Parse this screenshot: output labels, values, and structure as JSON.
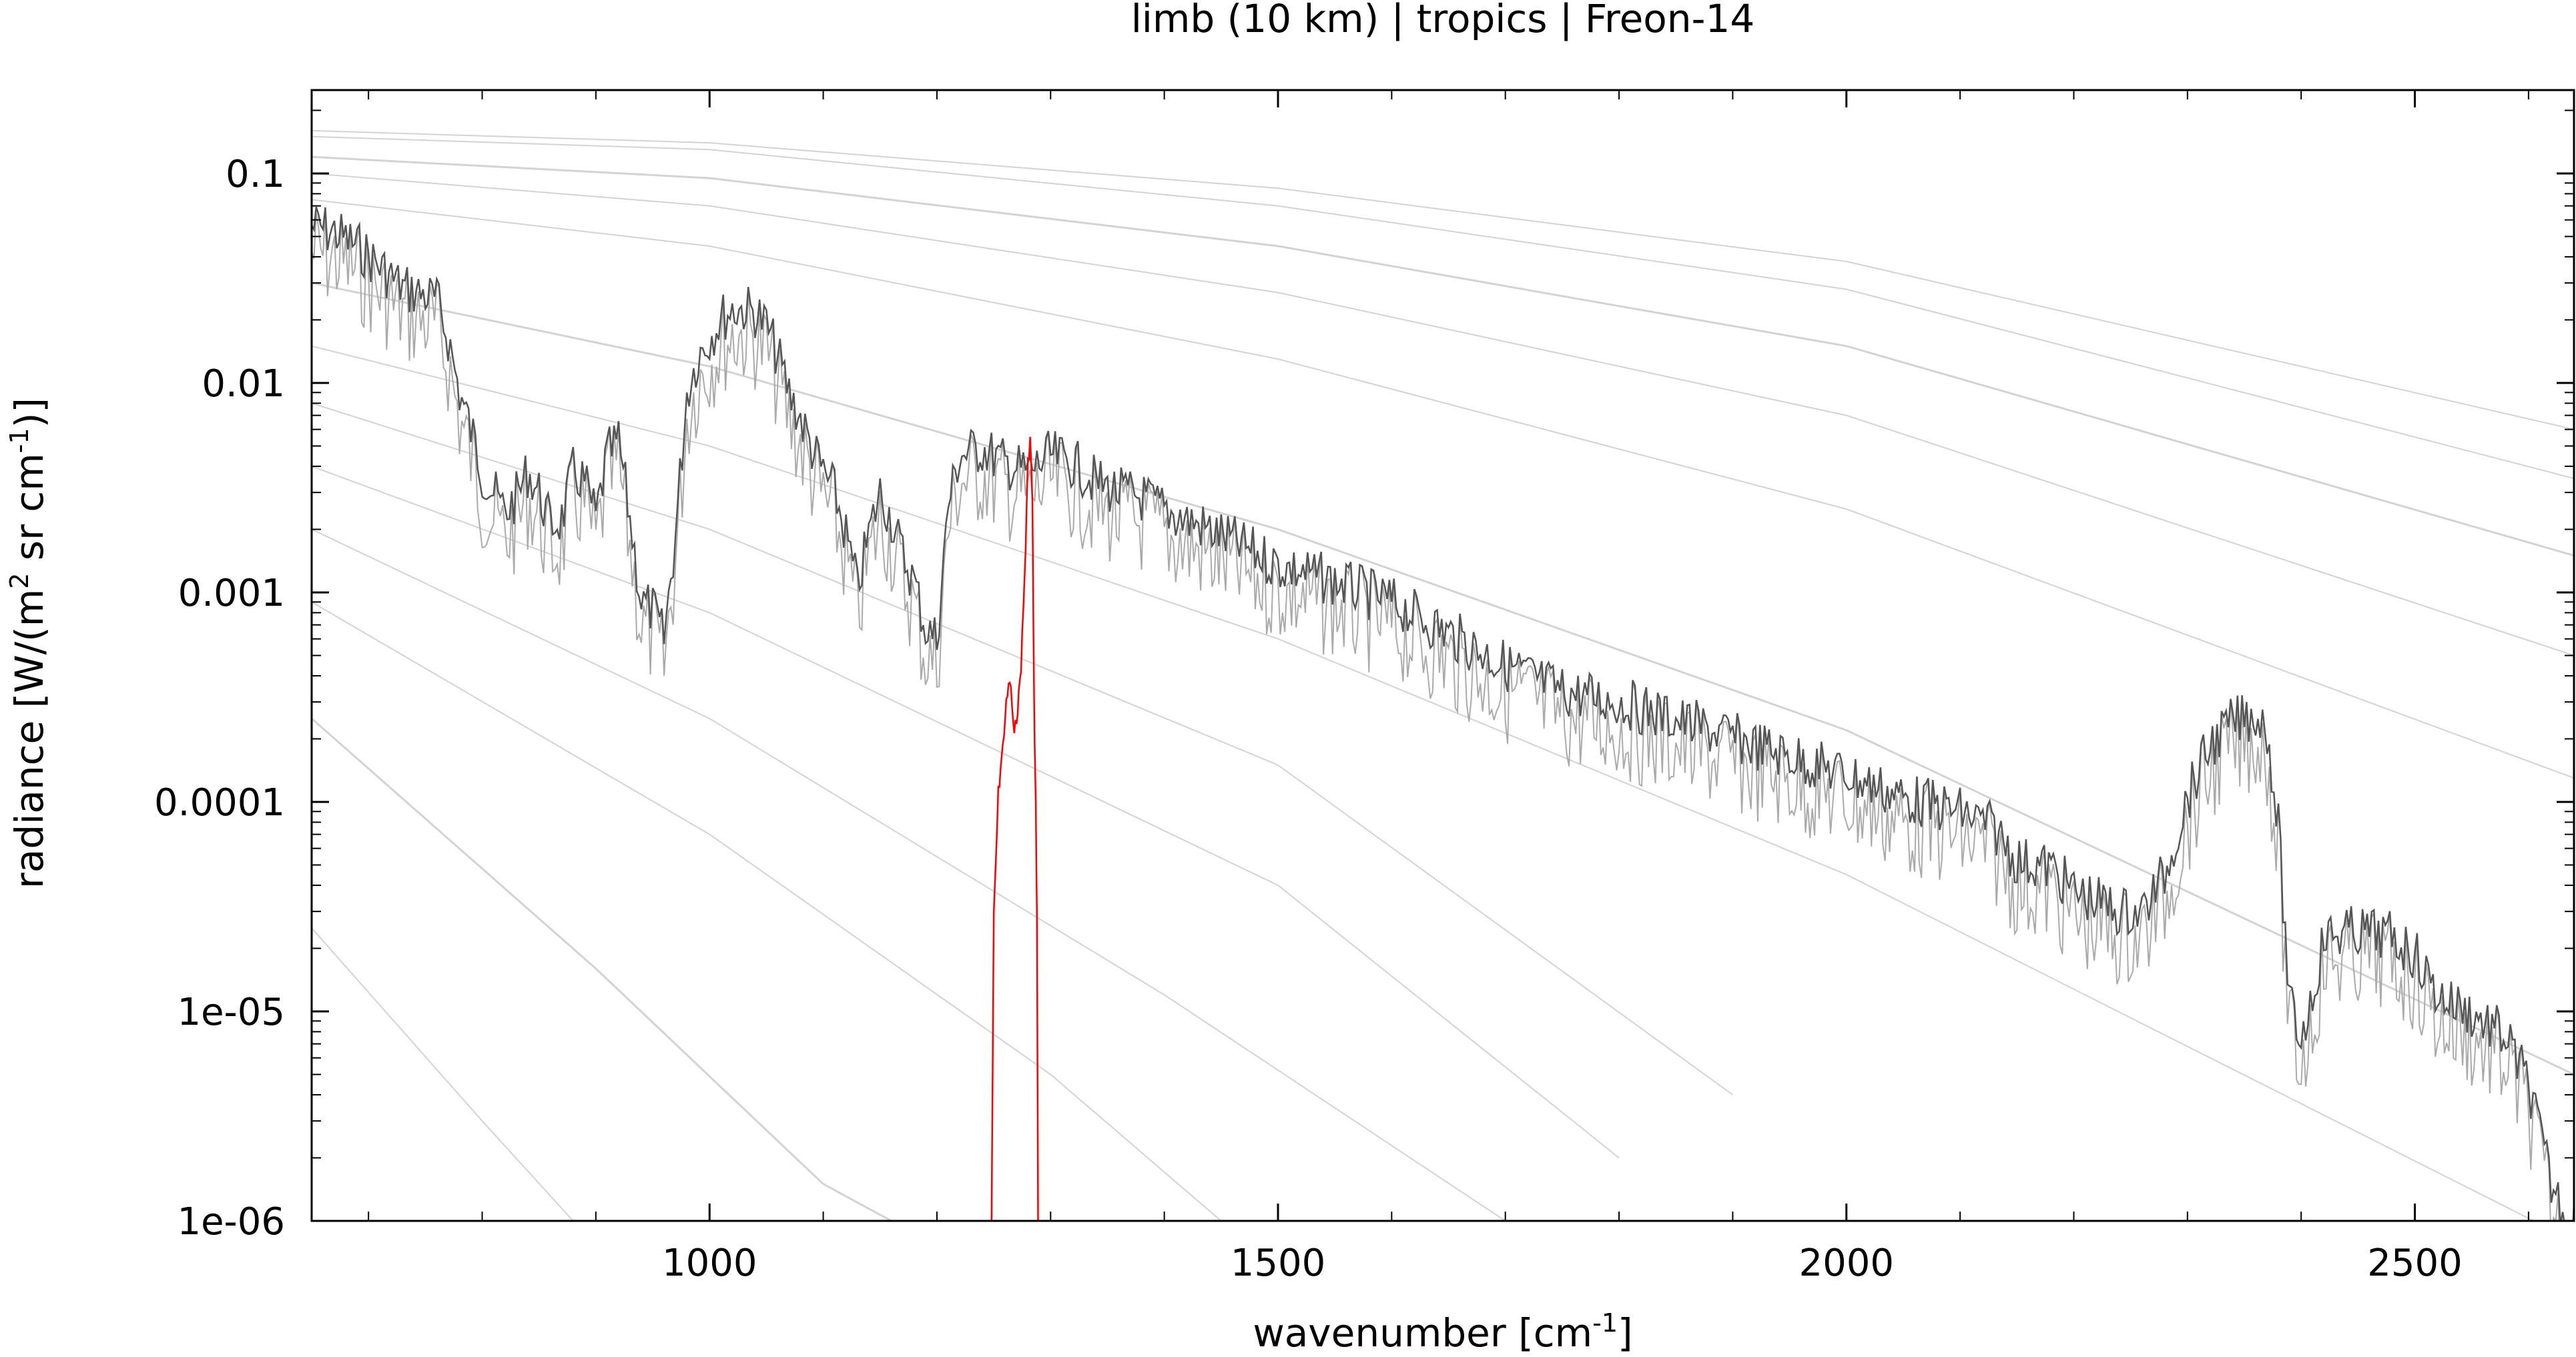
{
  "chart_data": {
    "type": "line",
    "title": "limb (10 km) | tropics | Freon-14",
    "xlabel": {
      "main": "wavenumber [cm",
      "sup": "-1",
      "tail": "]"
    },
    "ylabel": {
      "part1": "radiance [W/(m",
      "sup1": "2",
      "part2": " sr cm",
      "sup2": "-1",
      "part3": ")]"
    },
    "xlim": [
      650,
      2640
    ],
    "ylim": [
      1e-06,
      0.25
    ],
    "yscale": "log",
    "x_ticks": [
      {
        "value": 1000,
        "label": "1000"
      },
      {
        "value": 1500,
        "label": "1500"
      },
      {
        "value": 2000,
        "label": "2000"
      },
      {
        "value": 2500,
        "label": "2500"
      }
    ],
    "y_ticks": [
      {
        "value": 0.1,
        "label": "0.1"
      },
      {
        "value": 0.01,
        "label": "0.01"
      },
      {
        "value": 0.001,
        "label": "0.001"
      },
      {
        "value": 0.0001,
        "label": "0.0001"
      },
      {
        "value": 1e-05,
        "label": "1e-05"
      },
      {
        "value": 1e-06,
        "label": "1e-06"
      }
    ],
    "grid": false,
    "colors": {
      "total": "#555555",
      "total_light": "#aaaaaa",
      "gas": "#ff0000",
      "reference": "#c8c8c8"
    },
    "series": [
      {
        "role": "total",
        "x": [
          650,
          670,
          690,
          710,
          730,
          750,
          760,
          770,
          780,
          790,
          800,
          810,
          820,
          830,
          840,
          850,
          860,
          870,
          880,
          890,
          900,
          910,
          920,
          930,
          940,
          950,
          960,
          970,
          980,
          990,
          1000,
          1010,
          1020,
          1030,
          1040,
          1050,
          1060,
          1070,
          1080,
          1090,
          1100,
          1110,
          1120,
          1130,
          1140,
          1150,
          1160,
          1170,
          1180,
          1190,
          1200,
          1210,
          1220,
          1240,
          1260,
          1280,
          1300,
          1320,
          1340,
          1360,
          1380,
          1400,
          1450,
          1500,
          1550,
          1600,
          1650,
          1700,
          1750,
          1800,
          1850,
          1900,
          1950,
          2000,
          2050,
          2100,
          2130,
          2150,
          2180,
          2200,
          2220,
          2240,
          2260,
          2280,
          2300,
          2320,
          2340,
          2360,
          2370,
          2380,
          2390,
          2400,
          2410,
          2420,
          2440,
          2460,
          2480,
          2500,
          2520,
          2540,
          2560,
          2580,
          2600,
          2620,
          2640
        ],
        "y": [
          0.075,
          0.07,
          0.06,
          0.048,
          0.038,
          0.035,
          0.033,
          0.022,
          0.012,
          0.008,
          0.005,
          0.004,
          0.0032,
          0.0038,
          0.005,
          0.004,
          0.0028,
          0.003,
          0.005,
          0.0045,
          0.003,
          0.006,
          0.007,
          0.003,
          0.0012,
          0.0011,
          0.0008,
          0.0025,
          0.012,
          0.018,
          0.022,
          0.027,
          0.03,
          0.03,
          0.029,
          0.025,
          0.018,
          0.012,
          0.009,
          0.0065,
          0.005,
          0.004,
          0.0025,
          0.0014,
          0.0025,
          0.004,
          0.003,
          0.002,
          0.0015,
          0.0009,
          0.0008,
          0.0035,
          0.006,
          0.0065,
          0.0055,
          0.005,
          0.006,
          0.0055,
          0.0045,
          0.004,
          0.0038,
          0.0033,
          0.0025,
          0.0018,
          0.0015,
          0.0012,
          0.00085,
          0.0006,
          0.00045,
          0.0004,
          0.00033,
          0.00027,
          0.00022,
          0.00018,
          0.00014,
          0.00012,
          0.0001,
          7e-05,
          6.5e-05,
          5e-05,
          4.5e-05,
          4e-05,
          4e-05,
          6e-05,
          0.00014,
          0.00025,
          0.00032,
          0.00035,
          0.0003,
          0.0001,
          1.4e-05,
          1e-05,
          1.6e-05,
          3e-05,
          3.2e-05,
          3.2e-05,
          3e-05,
          2.5e-05,
          1.6e-05,
          1.4e-05,
          1.2e-05,
          1e-05,
          6e-06,
          2e-06,
          1.2e-06
        ]
      },
      {
        "role": "gas",
        "x": [
          1248,
          1250,
          1252,
          1254,
          1256,
          1258,
          1260,
          1262,
          1264,
          1266,
          1268,
          1270,
          1272,
          1274,
          1276,
          1278,
          1280,
          1282,
          1284,
          1285,
          1286,
          1287,
          1288,
          1289
        ],
        "y": [
          1e-06,
          3e-05,
          6e-05,
          0.00012,
          0.00016,
          0.0002,
          0.00028,
          0.00035,
          0.00042,
          0.00032,
          0.00022,
          0.00028,
          0.00035,
          0.0005,
          0.0009,
          0.0018,
          0.0045,
          0.006,
          0.003,
          0.0006,
          0.0002,
          0.0001,
          3e-05,
          1e-06
        ]
      }
    ],
    "reference_curves": [
      {
        "x": [
          650,
          1000,
          1500,
          2000,
          2640
        ],
        "y": [
          0.16,
          0.14,
          0.085,
          0.038,
          0.006
        ]
      },
      {
        "x": [
          650,
          1000,
          1500,
          2000,
          2640
        ],
        "y": [
          0.15,
          0.13,
          0.07,
          0.028,
          0.0035
        ]
      },
      {
        "x": [
          650,
          1000,
          1500,
          2000,
          2640
        ],
        "y": [
          0.12,
          0.095,
          0.045,
          0.015,
          0.0015
        ]
      },
      {
        "x": [
          650,
          1000,
          1500,
          2000,
          2640
        ],
        "y": [
          0.1,
          0.07,
          0.027,
          0.007,
          0.0005
        ]
      },
      {
        "x": [
          650,
          1000,
          1500,
          2000,
          2640
        ],
        "y": [
          0.075,
          0.045,
          0.013,
          0.0025,
          0.00013
        ]
      },
      {
        "x": [
          650,
          1000,
          1500,
          2000,
          2640
        ],
        "y": [
          0.03,
          0.012,
          0.002,
          0.00022,
          5e-06
        ]
      },
      {
        "x": [
          650,
          1000,
          1500,
          2000,
          2640
        ],
        "y": [
          0.015,
          0.005,
          0.0006,
          4.5e-05,
          8e-07
        ]
      },
      {
        "x": [
          650,
          1000,
          1500,
          1900
        ],
        "y": [
          0.008,
          0.002,
          0.00015,
          4e-06
        ]
      },
      {
        "x": [
          650,
          1000,
          1500,
          1800
        ],
        "y": [
          0.004,
          0.0008,
          4e-05,
          2e-06
        ]
      },
      {
        "x": [
          650,
          1000,
          1400,
          1700
        ],
        "y": [
          0.002,
          0.00025,
          1.2e-05,
          1e-06
        ]
      },
      {
        "x": [
          650,
          1000,
          1300,
          1450
        ],
        "y": [
          0.0009,
          7e-05,
          5e-06,
          1e-06
        ]
      },
      {
        "x": [
          650,
          900,
          1100,
          1160
        ],
        "y": [
          0.00025,
          1.6e-05,
          1.5e-06,
          1e-06
        ]
      },
      {
        "x": [
          650,
          800,
          880
        ],
        "y": [
          2.5e-05,
          3e-06,
          1e-06
        ]
      }
    ]
  }
}
